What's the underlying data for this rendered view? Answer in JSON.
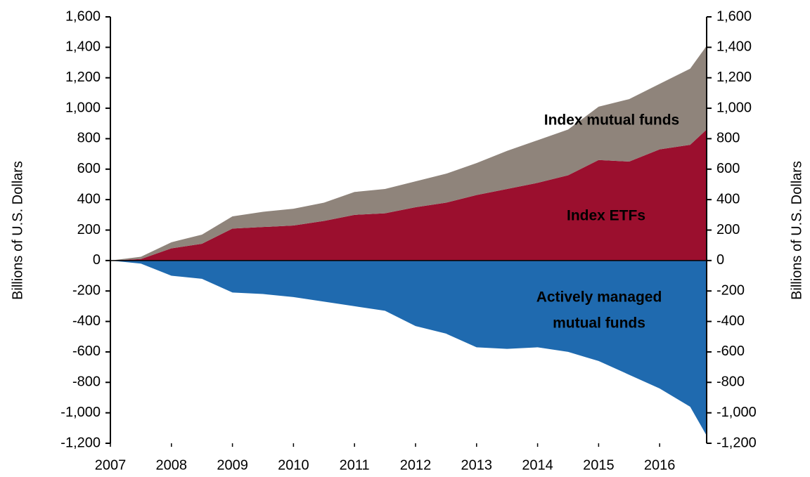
{
  "chart_data": {
    "type": "area",
    "ylabel": "Billions of U.S. Dollars",
    "y2label": "Billions of U.S. Dollars",
    "x": [
      2007.0,
      2007.5,
      2008.0,
      2008.5,
      2009.0,
      2009.5,
      2010.0,
      2010.5,
      2011.0,
      2011.5,
      2012.0,
      2012.5,
      2013.0,
      2013.5,
      2014.0,
      2014.5,
      2015.0,
      2015.5,
      2016.0,
      2016.5,
      2016.77
    ],
    "series": [
      {
        "color": "#9b0f2e",
        "values": [
          0,
          10,
          80,
          110,
          210,
          220,
          230,
          260,
          300,
          310,
          350,
          380,
          430,
          470,
          510,
          560,
          660,
          650,
          730,
          760,
          860
        ]
      },
      {
        "color": "#8f847b",
        "values": [
          0,
          15,
          40,
          60,
          80,
          100,
          110,
          120,
          150,
          160,
          170,
          190,
          210,
          250,
          280,
          300,
          350,
          410,
          430,
          500,
          550
        ]
      },
      {
        "color": "#1f6aaf",
        "values": [
          0,
          -20,
          -100,
          -120,
          -210,
          -220,
          -240,
          -270,
          -300,
          -330,
          -430,
          -480,
          -570,
          -580,
          -570,
          -600,
          -660,
          -750,
          -840,
          -960,
          -1150
        ]
      }
    ],
    "annotations": [
      "Index ETFs",
      "Index mutual funds",
      "Actively managed",
      "mutual funds"
    ],
    "xlim": [
      2007,
      2016.77
    ],
    "xticks": [
      2007,
      2008,
      2009,
      2010,
      2011,
      2012,
      2013,
      2014,
      2015,
      2016
    ],
    "ylim": [
      -1200,
      1600
    ],
    "yticks": [
      {
        "value": -1200,
        "label": "-1,200"
      },
      {
        "value": -1000,
        "label": "-1,000"
      },
      -800,
      -600,
      -400,
      -200,
      0,
      200,
      400,
      600,
      800,
      {
        "value": 1000,
        "label": "1,000"
      },
      {
        "value": 1200,
        "label": "1,200"
      },
      {
        "value": 1400,
        "label": "1,400"
      },
      {
        "value": 1600,
        "label": "1,600"
      }
    ],
    "y2lim": [
      -1200,
      1600
    ],
    "y2ticks": [
      {
        "value": -1200,
        "label": "-1,200"
      },
      {
        "value": -1000,
        "label": "-1,000"
      },
      -800,
      -600,
      -400,
      -200,
      0,
      200,
      400,
      600,
      800,
      {
        "value": 1000,
        "label": "1,000"
      },
      {
        "value": 1200,
        "label": "1,200"
      },
      {
        "value": 1400,
        "label": "1,400"
      },
      {
        "value": 1600,
        "label": "1,600"
      }
    ]
  }
}
